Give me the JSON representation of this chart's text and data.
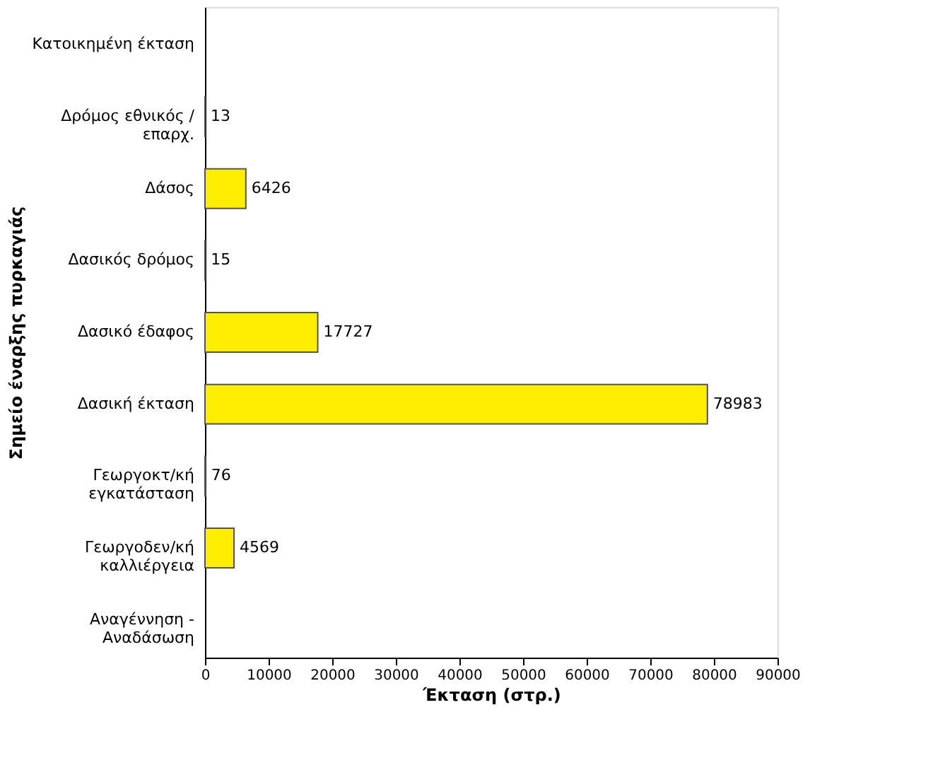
{
  "chart_data": {
    "type": "bar",
    "orientation": "horizontal",
    "xlabel": "Έκταση (στρ.)",
    "ylabel": "Σημείο έναρξης πυρκαγιάς",
    "categories": [
      "Κατοικημένη έκταση",
      "Δρόμος εθνικός /\nεπαρχ.",
      "Δάσος",
      "Δασικός δρόμος",
      "Δασικό έδαφος",
      "Δασική έκταση",
      "Γεωργοκτ/κή\nεγκατάσταση",
      "Γεωργοδεν/κή\nκαλλιέργεια",
      "Αναγέννηση -\nΑναδάσωση"
    ],
    "values": [
      null,
      13,
      6426,
      15,
      17727,
      78983,
      76,
      4569,
      null
    ],
    "color": "#ffee00",
    "xlim": [
      0,
      90000
    ],
    "xticks": [
      0,
      10000,
      20000,
      30000,
      40000,
      50000,
      60000,
      70000,
      80000,
      90000
    ],
    "grid": false,
    "data_labels": true
  }
}
